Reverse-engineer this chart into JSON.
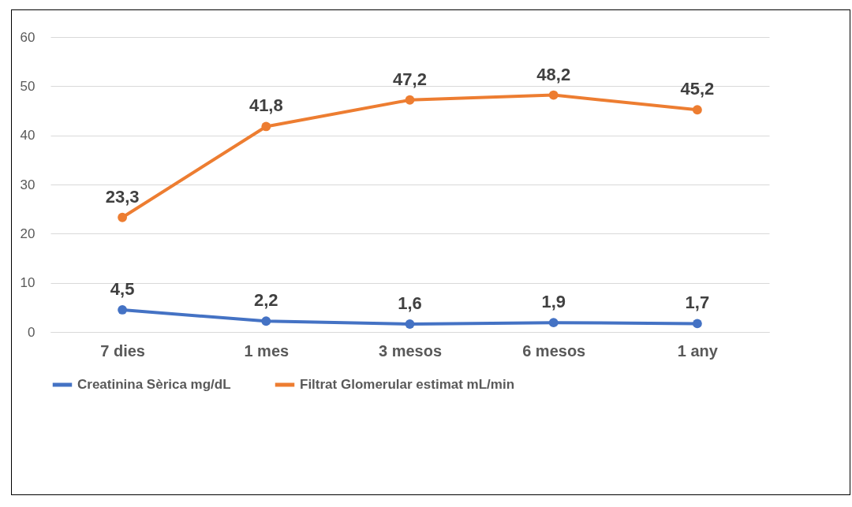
{
  "chart_data": {
    "type": "line",
    "categories": [
      "7 dies",
      "1 mes",
      "3 mesos",
      "6 mesos",
      "1 any"
    ],
    "series": [
      {
        "name": "Creatinina Sèrica  mg/dL",
        "color": "#4472c4",
        "values": [
          4.5,
          2.2,
          1.6,
          1.9,
          1.7
        ],
        "value_labels": [
          "4,5",
          "2,2",
          "1,6",
          "1,9",
          "1,7"
        ]
      },
      {
        "name": "Filtrat Glomerular estimat  mL/min",
        "color": "#ed7d31",
        "values": [
          23.3,
          41.8,
          47.2,
          48.2,
          45.2
        ],
        "value_labels": [
          "23,3",
          "41,8",
          "47,2",
          "48,2",
          "45,2"
        ]
      }
    ],
    "ylim": [
      0,
      60
    ],
    "yticks": [
      0,
      10,
      20,
      30,
      40,
      50,
      60
    ],
    "grid": "y",
    "legend": "bottom",
    "marker": "circle"
  }
}
